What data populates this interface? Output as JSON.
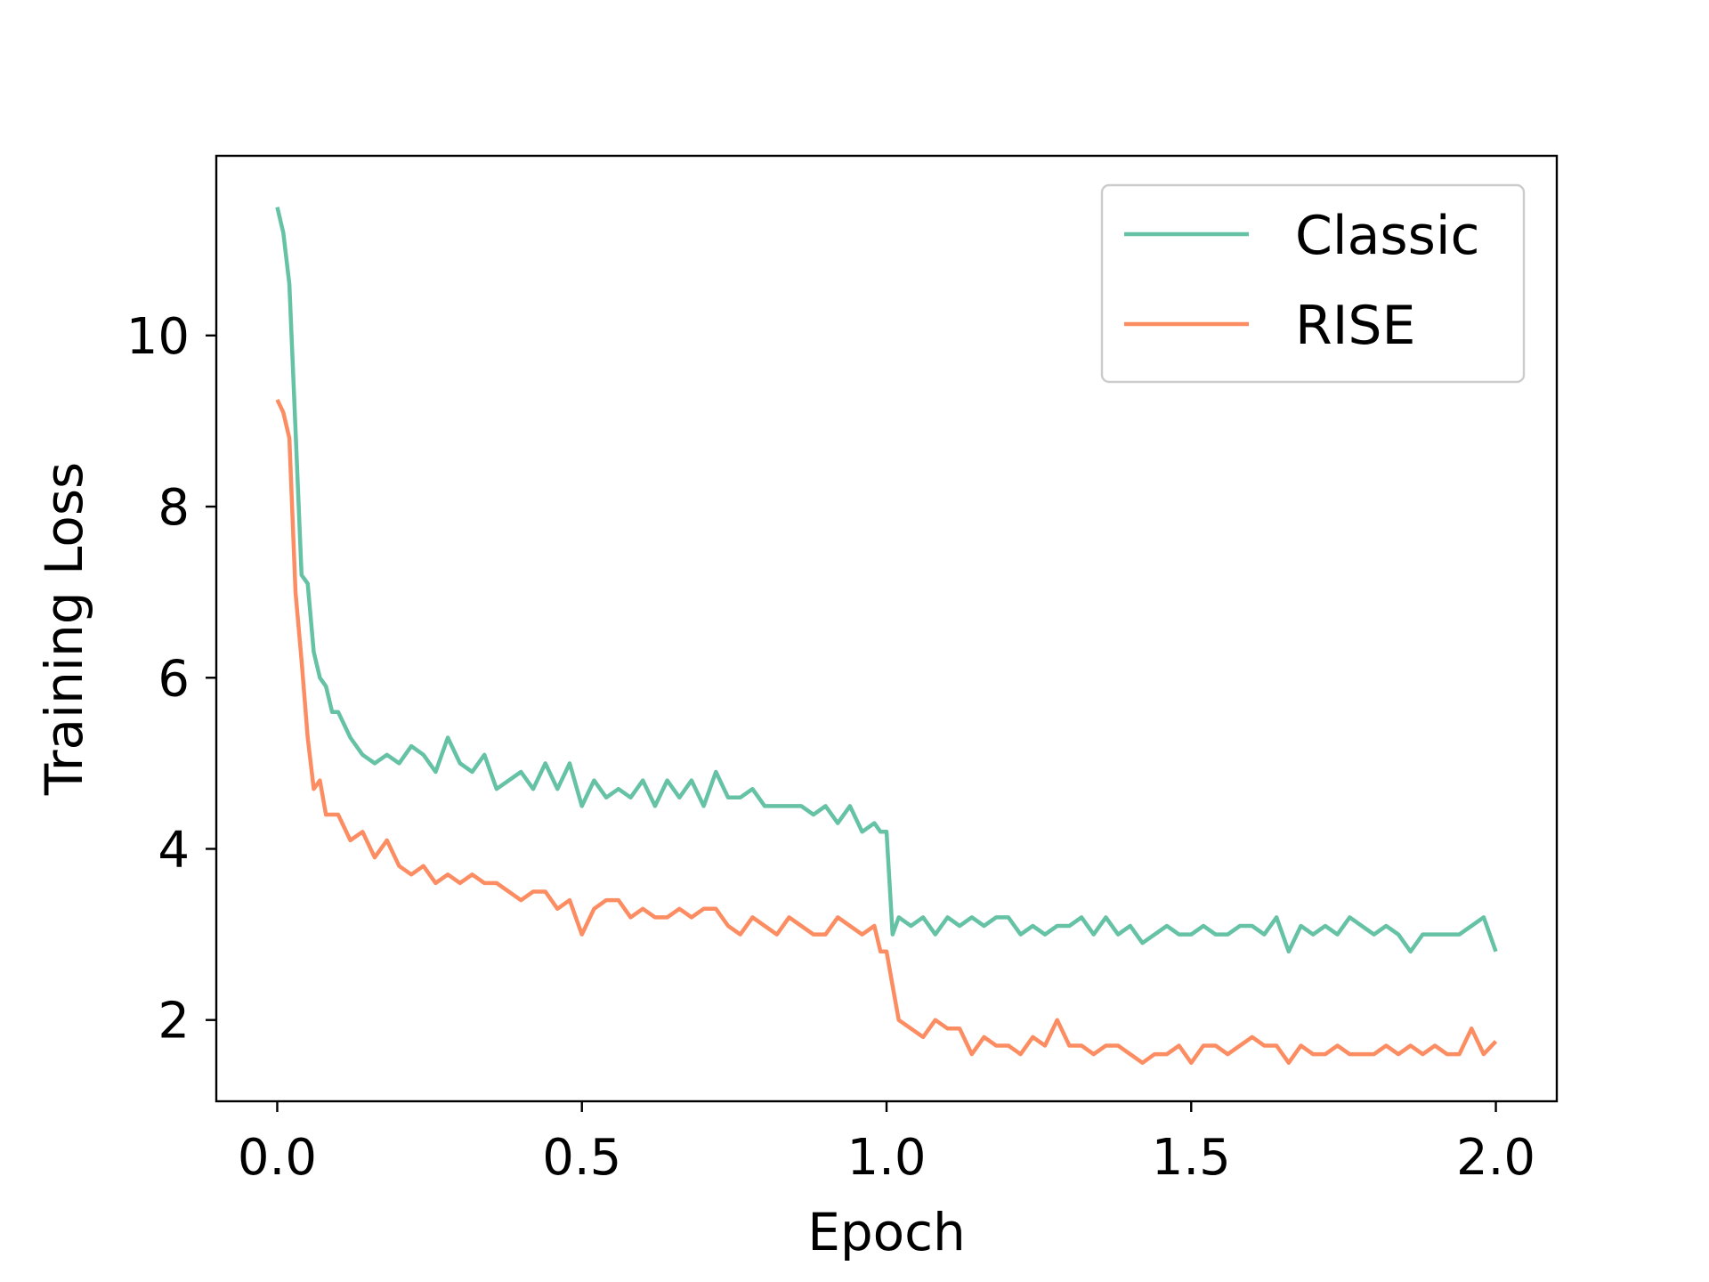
{
  "chart_data": {
    "type": "line",
    "xlabel": "Epoch",
    "ylabel": "Training Loss",
    "xlim": [
      -0.1,
      2.1
    ],
    "ylim": [
      1.05,
      12.1
    ],
    "xticks": [
      0.0,
      0.5,
      1.0,
      1.5,
      2.0
    ],
    "xtick_labels": [
      "0.0",
      "0.5",
      "1.0",
      "1.5",
      "2.0"
    ],
    "yticks": [
      2,
      4,
      6,
      8,
      10
    ],
    "ytick_labels": [
      "2",
      "4",
      "6",
      "8",
      "10"
    ],
    "grid": false,
    "legend_position": "top-right",
    "series": [
      {
        "name": "Classic",
        "color": "#66c2a5",
        "x": [
          0.0,
          0.01,
          0.02,
          0.03,
          0.04,
          0.05,
          0.06,
          0.07,
          0.08,
          0.09,
          0.1,
          0.12,
          0.14,
          0.16,
          0.18,
          0.2,
          0.22,
          0.24,
          0.26,
          0.28,
          0.3,
          0.32,
          0.34,
          0.36,
          0.38,
          0.4,
          0.42,
          0.44,
          0.46,
          0.48,
          0.5,
          0.52,
          0.54,
          0.56,
          0.58,
          0.6,
          0.62,
          0.64,
          0.66,
          0.68,
          0.7,
          0.72,
          0.74,
          0.76,
          0.78,
          0.8,
          0.82,
          0.84,
          0.86,
          0.88,
          0.9,
          0.92,
          0.94,
          0.96,
          0.98,
          0.99,
          1.0,
          1.01,
          1.02,
          1.04,
          1.06,
          1.08,
          1.1,
          1.12,
          1.14,
          1.16,
          1.18,
          1.2,
          1.22,
          1.24,
          1.26,
          1.28,
          1.3,
          1.32,
          1.34,
          1.36,
          1.38,
          1.4,
          1.42,
          1.44,
          1.46,
          1.48,
          1.5,
          1.52,
          1.54,
          1.56,
          1.58,
          1.6,
          1.62,
          1.64,
          1.66,
          1.68,
          1.7,
          1.72,
          1.74,
          1.76,
          1.78,
          1.8,
          1.82,
          1.84,
          1.86,
          1.88,
          1.9,
          1.92,
          1.94,
          1.96,
          1.98,
          2.0
        ],
        "y": [
          11.5,
          11.2,
          10.6,
          8.9,
          7.2,
          7.1,
          6.3,
          6.0,
          5.9,
          5.6,
          5.6,
          5.3,
          5.1,
          5.0,
          5.1,
          5.0,
          5.2,
          5.1,
          4.9,
          5.3,
          5.0,
          4.9,
          5.1,
          4.7,
          4.8,
          4.9,
          4.7,
          5.0,
          4.7,
          5.0,
          4.5,
          4.8,
          4.6,
          4.7,
          4.6,
          4.8,
          4.5,
          4.8,
          4.6,
          4.8,
          4.5,
          4.9,
          4.6,
          4.6,
          4.7,
          4.5,
          4.5,
          4.5,
          4.5,
          4.4,
          4.5,
          4.3,
          4.5,
          4.2,
          4.3,
          4.2,
          4.2,
          3.0,
          3.2,
          3.1,
          3.2,
          3.0,
          3.2,
          3.1,
          3.2,
          3.1,
          3.2,
          3.2,
          3.0,
          3.1,
          3.0,
          3.1,
          3.1,
          3.2,
          3.0,
          3.2,
          3.0,
          3.1,
          2.9,
          3.0,
          3.1,
          3.0,
          3.0,
          3.1,
          3.0,
          3.0,
          3.1,
          3.1,
          3.0,
          3.2,
          2.8,
          3.1,
          3.0,
          3.1,
          3.0,
          3.2,
          3.1,
          3.0,
          3.1,
          3.0,
          2.8,
          3.0,
          3.0,
          3.0,
          3.0,
          3.1,
          3.2,
          2.8
        ]
      },
      {
        "name": "RISE",
        "color": "#fc8d62",
        "x": [
          0.0,
          0.01,
          0.02,
          0.03,
          0.04,
          0.05,
          0.06,
          0.07,
          0.08,
          0.09,
          0.1,
          0.12,
          0.14,
          0.16,
          0.18,
          0.2,
          0.22,
          0.24,
          0.26,
          0.28,
          0.3,
          0.32,
          0.34,
          0.36,
          0.38,
          0.4,
          0.42,
          0.44,
          0.46,
          0.48,
          0.5,
          0.52,
          0.54,
          0.56,
          0.58,
          0.6,
          0.62,
          0.64,
          0.66,
          0.68,
          0.7,
          0.72,
          0.74,
          0.76,
          0.78,
          0.8,
          0.82,
          0.84,
          0.86,
          0.88,
          0.9,
          0.92,
          0.94,
          0.96,
          0.98,
          0.99,
          1.0,
          1.01,
          1.02,
          1.04,
          1.06,
          1.08,
          1.1,
          1.12,
          1.14,
          1.16,
          1.18,
          1.2,
          1.22,
          1.24,
          1.26,
          1.28,
          1.3,
          1.32,
          1.34,
          1.36,
          1.38,
          1.4,
          1.42,
          1.44,
          1.46,
          1.48,
          1.5,
          1.52,
          1.54,
          1.56,
          1.58,
          1.6,
          1.62,
          1.64,
          1.66,
          1.68,
          1.7,
          1.72,
          1.74,
          1.76,
          1.78,
          1.8,
          1.82,
          1.84,
          1.86,
          1.88,
          1.9,
          1.92,
          1.94,
          1.96,
          1.98,
          2.0
        ],
        "y": [
          9.25,
          9.1,
          8.8,
          7.0,
          6.2,
          5.3,
          4.7,
          4.8,
          4.4,
          4.4,
          4.4,
          4.1,
          4.2,
          3.9,
          4.1,
          3.8,
          3.7,
          3.8,
          3.6,
          3.7,
          3.6,
          3.7,
          3.6,
          3.6,
          3.5,
          3.4,
          3.5,
          3.5,
          3.3,
          3.4,
          3.0,
          3.3,
          3.4,
          3.4,
          3.2,
          3.3,
          3.2,
          3.2,
          3.3,
          3.2,
          3.3,
          3.3,
          3.1,
          3.0,
          3.2,
          3.1,
          3.0,
          3.2,
          3.1,
          3.0,
          3.0,
          3.2,
          3.1,
          3.0,
          3.1,
          2.8,
          2.8,
          2.4,
          2.0,
          1.9,
          1.8,
          2.0,
          1.9,
          1.9,
          1.6,
          1.8,
          1.7,
          1.7,
          1.6,
          1.8,
          1.7,
          2.0,
          1.7,
          1.7,
          1.6,
          1.7,
          1.7,
          1.6,
          1.5,
          1.6,
          1.6,
          1.7,
          1.5,
          1.7,
          1.7,
          1.6,
          1.7,
          1.8,
          1.7,
          1.7,
          1.5,
          1.7,
          1.6,
          1.6,
          1.7,
          1.6,
          1.6,
          1.6,
          1.7,
          1.6,
          1.7,
          1.6,
          1.7,
          1.6,
          1.6,
          1.9,
          1.6,
          1.75
        ]
      }
    ]
  }
}
